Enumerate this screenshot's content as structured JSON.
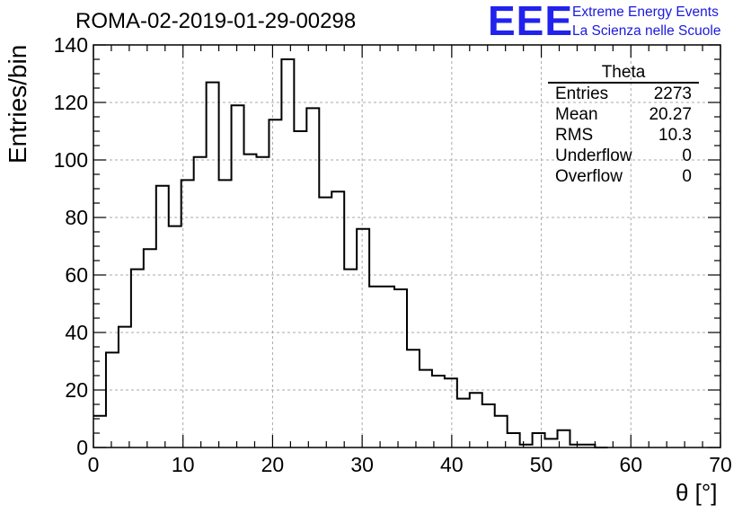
{
  "header": {
    "run_title": "ROMA-02-2019-01-29-00298"
  },
  "logo": {
    "mark": "EEE",
    "line1": "Extreme Energy Events",
    "line2": "La Scienza nelle Scuole",
    "color": "#2222ee"
  },
  "stats_box": {
    "name": "Theta",
    "rows": [
      {
        "label": "Entries",
        "value": "2273"
      },
      {
        "label": "Mean",
        "value": "20.27"
      },
      {
        "label": "RMS",
        "value": "10.3"
      },
      {
        "label": "Underflow",
        "value": "0"
      },
      {
        "label": "Overflow",
        "value": "0"
      }
    ]
  },
  "chart_data": {
    "type": "bar",
    "title": "ROMA-02-2019-01-29-00298",
    "xlabel": "θ [°]",
    "ylabel": "Entries/bin",
    "xlim": [
      0,
      70
    ],
    "ylim": [
      0,
      140
    ],
    "bin_width": 1.4,
    "x_ticks": [
      0,
      10,
      20,
      30,
      40,
      50,
      60,
      70
    ],
    "y_ticks": [
      0,
      20,
      40,
      60,
      80,
      100,
      120,
      140
    ],
    "grid": true,
    "values": [
      11,
      33,
      42,
      62,
      69,
      91,
      77,
      93,
      101,
      127,
      93,
      119,
      102,
      101,
      114,
      135,
      110,
      118,
      87,
      89,
      62,
      76,
      56,
      56,
      55,
      34,
      27,
      25,
      24,
      17,
      19,
      15,
      11,
      5,
      1,
      5,
      3,
      6,
      1,
      1,
      0,
      0,
      0,
      0,
      0,
      0,
      0,
      0,
      0,
      0
    ],
    "line_color": "#000000"
  }
}
